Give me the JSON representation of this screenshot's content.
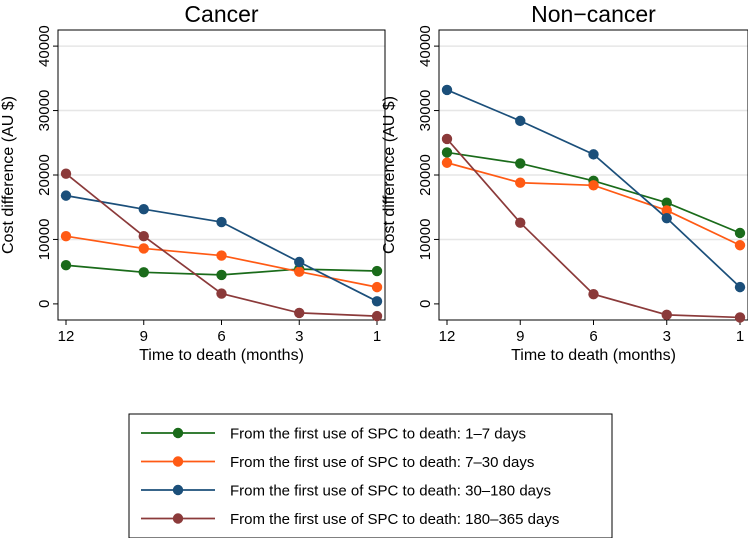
{
  "chart_data": [
    {
      "type": "line",
      "title": "Cancer",
      "xlabel": "Time to death (months)",
      "ylabel": "Cost difference (AU $)",
      "x": [
        "12",
        "9",
        "6",
        "3",
        "1"
      ],
      "yticks": [
        0,
        10000,
        20000,
        30000,
        40000
      ],
      "ylim": [
        -2500,
        42500
      ],
      "grid": true,
      "series": [
        {
          "name": "From the first use of SPC to death: 1–7 days",
          "color": "#1a6b1a",
          "values": [
            6000,
            4900,
            4500,
            5400,
            5100
          ]
        },
        {
          "name": "From the first use of SPC to death: 7–30 days",
          "color": "#ff5a14",
          "values": [
            10500,
            8600,
            7500,
            5000,
            2600
          ]
        },
        {
          "name": "From the first use of SPC to death: 30–180 days",
          "color": "#1b4f7a",
          "values": [
            16800,
            14700,
            12700,
            6500,
            400
          ]
        },
        {
          "name": "From the first use of SPC to death: 180–365 days",
          "color": "#8b3a3a",
          "values": [
            20200,
            10500,
            1600,
            -1400,
            -1900
          ]
        }
      ]
    },
    {
      "type": "line",
      "title": "Non−cancer",
      "xlabel": "Time to death (months)",
      "ylabel": "Cost difference (AU $)",
      "x": [
        "12",
        "9",
        "6",
        "3",
        "1"
      ],
      "yticks": [
        0,
        10000,
        20000,
        30000,
        40000
      ],
      "ylim": [
        -2500,
        42500
      ],
      "grid": true,
      "series": [
        {
          "name": "From the first use of SPC to death: 1–7 days",
          "color": "#1a6b1a",
          "values": [
            23500,
            21800,
            19100,
            15700,
            11000
          ]
        },
        {
          "name": "From the first use of SPC to death: 7–30 days",
          "color": "#ff5a14",
          "values": [
            21900,
            18800,
            18400,
            14500,
            9100
          ]
        },
        {
          "name": "From the first use of SPC to death: 30–180 days",
          "color": "#1b4f7a",
          "values": [
            33200,
            28400,
            23200,
            13300,
            2600
          ]
        },
        {
          "name": "From the first use of SPC to death: 180–365 days",
          "color": "#8b3a3a",
          "values": [
            25600,
            12600,
            1500,
            -1700,
            -2100
          ]
        }
      ]
    }
  ],
  "legend": {
    "position": "bottom-center",
    "entries": [
      {
        "label": "From the first use of SPC to death: 1–7 days",
        "color": "#1a6b1a"
      },
      {
        "label": "From the first use of SPC to death: 7–30 days",
        "color": "#ff5a14"
      },
      {
        "label": "From the first use of SPC to death: 30–180 days",
        "color": "#1b4f7a"
      },
      {
        "label": "From the first use of SPC to death: 180–365 days",
        "color": "#8b3a3a"
      }
    ]
  }
}
